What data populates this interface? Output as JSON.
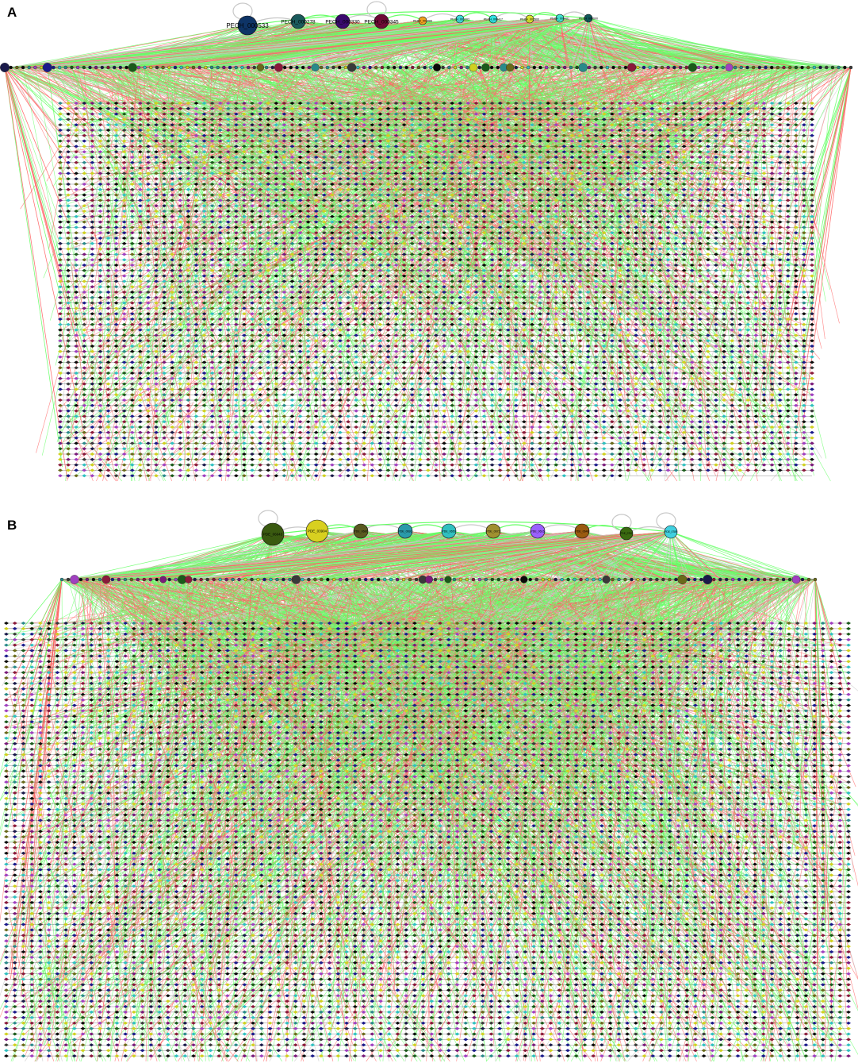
{
  "panels": [
    {
      "letter": "A",
      "hubs": [
        {
          "label": "PECH_000533",
          "color": "#0e3466",
          "size": "large"
        },
        {
          "label": "PECH_000278",
          "color": "#1a5a5c",
          "size": "medium"
        },
        {
          "label": "PECH_000330",
          "color": "#3a0a6e",
          "size": "medium"
        },
        {
          "label": "PECH_000345",
          "color": "#6e0a35",
          "size": "medium"
        },
        {
          "label": "PECH_001083",
          "color": "#f0a020",
          "size": "small"
        },
        {
          "label": "PECH_001003",
          "color": "#3fd8d8",
          "size": "small"
        },
        {
          "label": "PECH_000417",
          "color": "#30e0e0",
          "size": "small"
        },
        {
          "label": "PECH_002500",
          "color": "#d8e030",
          "size": "small"
        },
        {
          "label": "PECH_000481",
          "color": "#40e0d0",
          "size": "small"
        },
        {
          "label": "PECH_000600",
          "color": "#10585a",
          "size": "small"
        }
      ]
    },
    {
      "letter": "B",
      "hubs": [
        {
          "label": "PDE_06643",
          "color": "#3a5a10",
          "size": "large"
        },
        {
          "label": "PDE_03904",
          "color": "#d8d020",
          "size": "large"
        },
        {
          "label": "PDE_0687",
          "color": "#5a5a20",
          "size": "medium"
        },
        {
          "label": "PDE_0691",
          "color": "#2a9aaa",
          "size": "medium"
        },
        {
          "label": "PDE_0650",
          "color": "#30c0c0",
          "size": "medium"
        },
        {
          "label": "PDE_0672",
          "color": "#a09030",
          "size": "medium"
        },
        {
          "label": "PDE_0616",
          "color": "#9a60ff",
          "size": "medium"
        },
        {
          "label": "PDE_0648",
          "color": "#9a5a10",
          "size": "medium"
        },
        {
          "label": "PDE_0702",
          "color": "#3a6a10",
          "size": "small"
        },
        {
          "label": "PDE_0789",
          "color": "#40d0e0",
          "size": "small"
        }
      ]
    }
  ],
  "colors": {
    "edge_positive": "#ff6666",
    "edge_negative": "#66ff66",
    "edge_neutral": "#c8c8c8",
    "node_palette": [
      "#0a0a0a",
      "#1a1a8a",
      "#2a8a8a",
      "#7a1a7a",
      "#6a6a1a",
      "#1a5a1a",
      "#8a1a3a",
      "#30c0c0",
      "#d0d020",
      "#a040c0",
      "#3a3a3a",
      "#1a1a4a"
    ]
  }
}
